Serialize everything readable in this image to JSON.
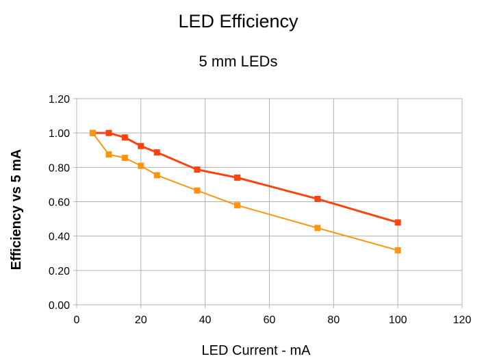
{
  "chart_data": {
    "type": "line",
    "title": "LED Efficiency",
    "subtitle": "5 mm LEDs",
    "xlabel": "LED Current - mA",
    "ylabel": "Efficiency vs 5 mA",
    "xlim": [
      0,
      120
    ],
    "ylim": [
      0,
      1.2
    ],
    "xticks": [
      "0",
      "20",
      "40",
      "60",
      "80",
      "100",
      "120"
    ],
    "yticks": [
      "0.00",
      "0.20",
      "0.40",
      "0.60",
      "0.80",
      "1.00",
      "1.20"
    ],
    "grid": true,
    "legend": "none",
    "marker": "square",
    "series": [
      {
        "color": "#ff420e",
        "x": [
          5,
          10,
          15,
          20,
          25,
          37.5,
          50,
          75,
          100
        ],
        "y": [
          1.0,
          1.0,
          0.974,
          0.924,
          0.887,
          0.787,
          0.74,
          0.616,
          0.479
        ]
      },
      {
        "color": "#ff950e",
        "x": [
          5,
          10,
          15,
          20,
          25,
          37.5,
          50,
          75,
          100
        ],
        "y": [
          1.0,
          0.875,
          0.855,
          0.809,
          0.754,
          0.665,
          0.579,
          0.447,
          0.317
        ]
      }
    ]
  }
}
